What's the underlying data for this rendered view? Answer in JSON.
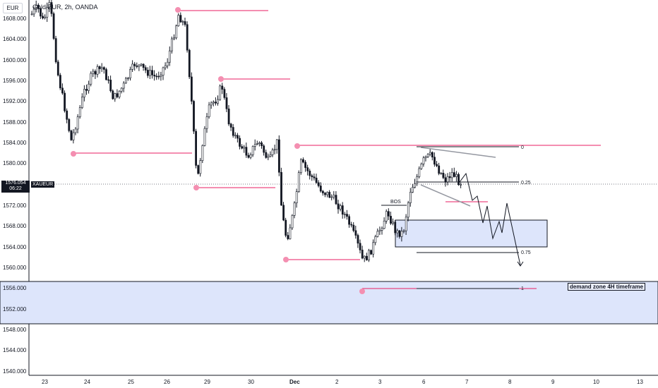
{
  "header": {
    "title": "Gold/EUR, 2h, OANDA",
    "currency": "EUR"
  },
  "price_scale": {
    "labels": [
      "1608.000",
      "1604.000",
      "1600.000",
      "1596.000",
      "1592.000",
      "1588.000",
      "1584.000",
      "1580.000",
      "1576.054",
      "1572.000",
      "1568.000",
      "1564.000",
      "1560.000",
      "1556.000",
      "1552.000",
      "1548.000",
      "1544.000",
      "1540.000"
    ],
    "current_price": "1576.054",
    "countdown": "06:22",
    "symbol": "XAUEUR"
  },
  "time_scale": {
    "labels": [
      "23",
      "24",
      "25",
      "26",
      "29",
      "30",
      "Dec",
      "2",
      "3",
      "6",
      "7",
      "8",
      "9",
      "10",
      "13"
    ]
  },
  "annotations": {
    "bos": "BOS",
    "fib_0": "0",
    "fib_025": "0.25",
    "fib_075": "0.75",
    "fib_1": "1",
    "demand_zone": "demand zone 4H timeframe"
  },
  "colors": {
    "bull": "#131722",
    "bear": "#131722",
    "level_line": "#e91e63",
    "pivot": "#f48fb1",
    "zone_fill": "#dde5fb",
    "zone_border": "#131722"
  }
}
